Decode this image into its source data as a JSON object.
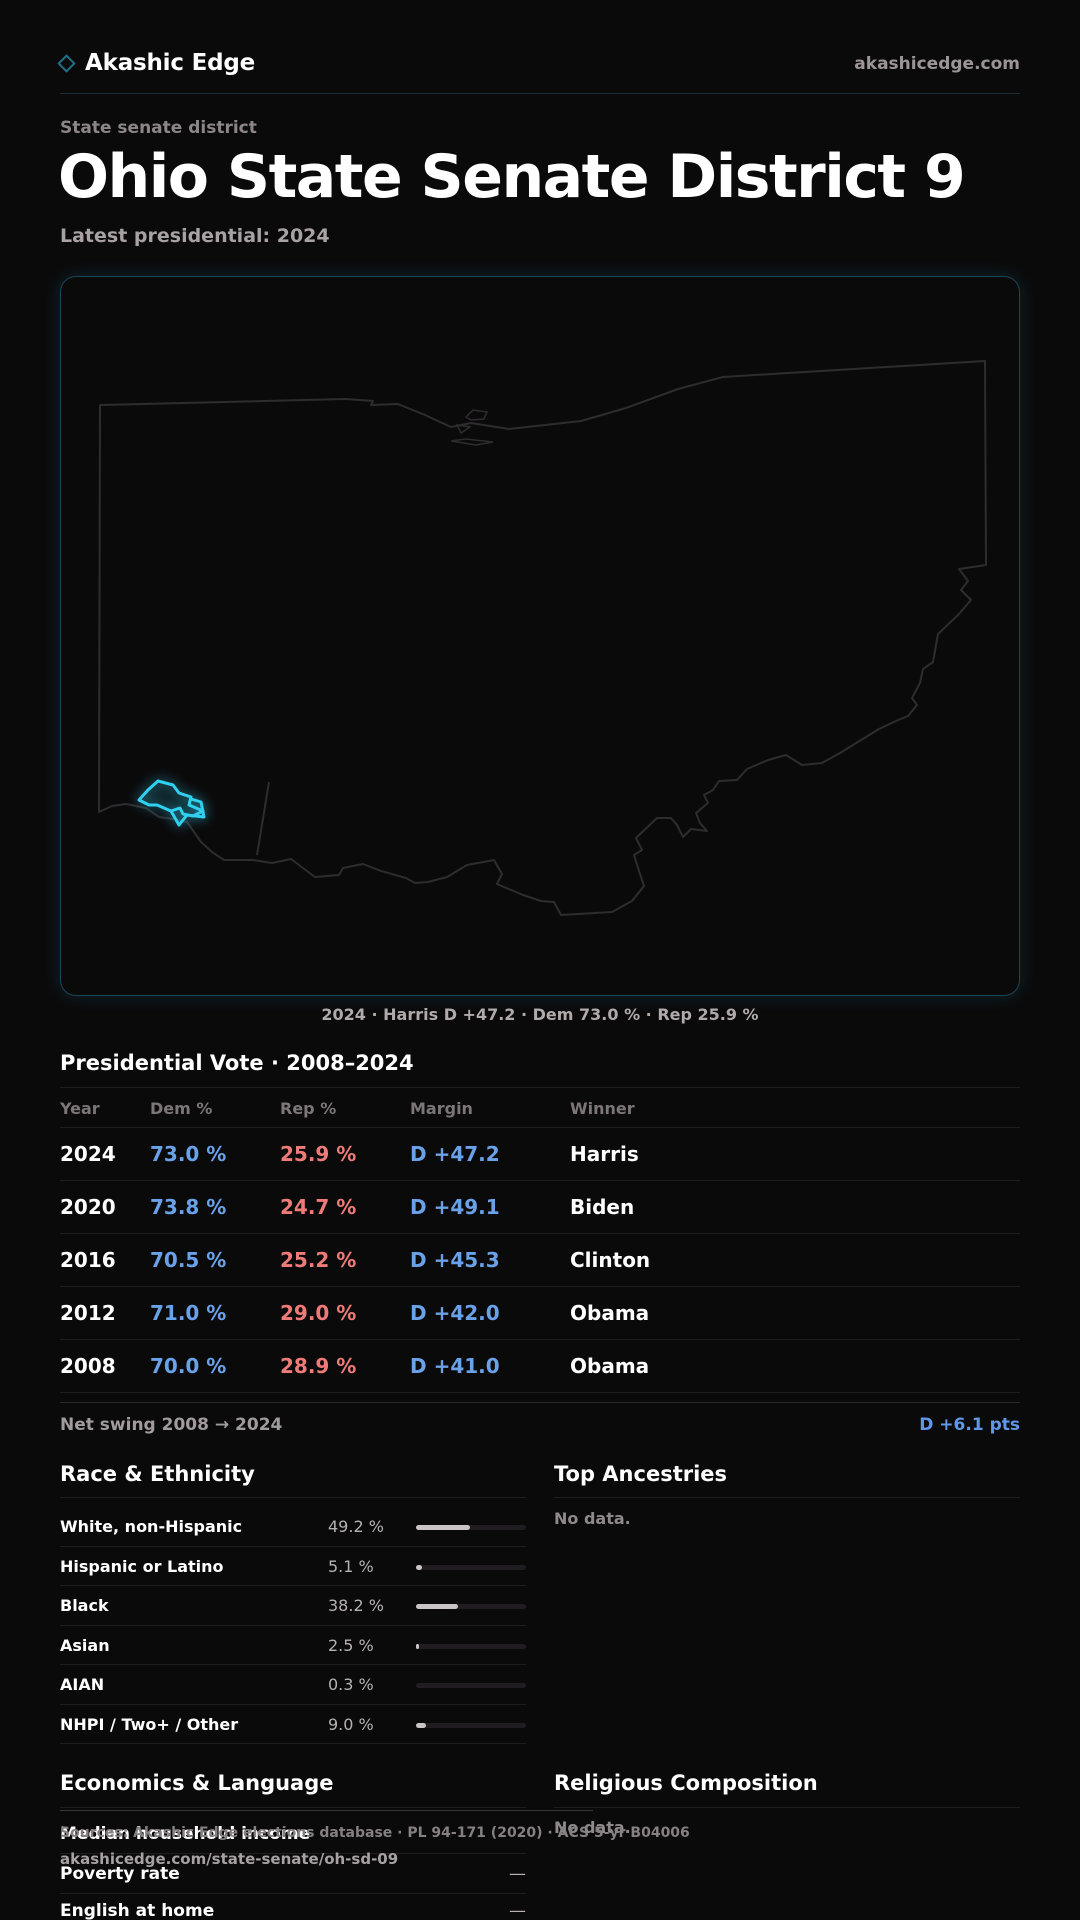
{
  "brand": {
    "name": "Akashic Edge",
    "url": "akashicedge.com",
    "icon": "diamond-icon"
  },
  "header": {
    "kicker": "State senate district",
    "title": "Ohio State Senate District 9",
    "subtitle": "Latest presidential: 2024"
  },
  "map": {
    "caption": "2024 · Harris D +47.2 · Dem 73.0 % · Rep 25.9 %",
    "highlight_color": "#2fd0f0",
    "outline_color": "#2e2c2e"
  },
  "presidential": {
    "title": "Presidential Vote · 2008–2024",
    "columns": [
      "Year",
      "Dem %",
      "Rep %",
      "Margin",
      "Winner"
    ],
    "rows": [
      {
        "year": "2024",
        "dem": "73.0 %",
        "rep": "25.9 %",
        "margin": "D +47.2",
        "winner": "Harris"
      },
      {
        "year": "2020",
        "dem": "73.8 %",
        "rep": "24.7 %",
        "margin": "D +49.1",
        "winner": "Biden"
      },
      {
        "year": "2016",
        "dem": "70.5 %",
        "rep": "25.2 %",
        "margin": "D +45.3",
        "winner": "Clinton"
      },
      {
        "year": "2012",
        "dem": "71.0 %",
        "rep": "29.0 %",
        "margin": "D +42.0",
        "winner": "Obama"
      },
      {
        "year": "2008",
        "dem": "70.0 %",
        "rep": "28.9 %",
        "margin": "D +41.0",
        "winner": "Obama"
      }
    ],
    "swing_label": "Net swing 2008 → 2024",
    "swing_value": "D +6.1 pts",
    "dem_color": "#6aa2ea",
    "rep_color": "#ef7b78"
  },
  "race": {
    "title": "Race & Ethnicity",
    "rows": [
      {
        "label": "White, non-Hispanic",
        "pct": "49.2 %",
        "share": 0.492
      },
      {
        "label": "Hispanic or Latino",
        "pct": "5.1 %",
        "share": 0.051
      },
      {
        "label": "Black",
        "pct": "38.2 %",
        "share": 0.382
      },
      {
        "label": "Asian",
        "pct": "2.5 %",
        "share": 0.025
      },
      {
        "label": "AIAN",
        "pct": "0.3 %",
        "share": 0.003
      },
      {
        "label": "NHPI / Two+ / Other",
        "pct": "9.0 %",
        "share": 0.09
      }
    ]
  },
  "ancestry": {
    "title": "Top Ancestries",
    "empty": "No data."
  },
  "economics": {
    "title": "Economics & Language",
    "rows": [
      {
        "label": "Median household income",
        "value": ""
      },
      {
        "label": "Poverty rate",
        "value": "—"
      },
      {
        "label": "English at home",
        "value": "—"
      }
    ]
  },
  "religion": {
    "title": "Religious Composition",
    "empty": "No data."
  },
  "footer": {
    "sources": "Sources: Akashic Edge elections database · PL 94-171 (2020) · ACS 5-yr B04006",
    "url": "akashicedge.com/state-senate/oh-sd-09"
  }
}
